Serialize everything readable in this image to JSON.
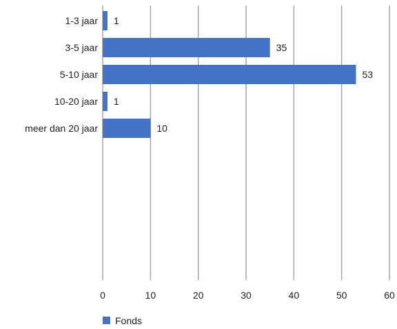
{
  "chart_data": {
    "type": "bar",
    "orientation": "horizontal",
    "categories": [
      "1-3 jaar",
      "3-5 jaar",
      "5-10 jaar",
      "10-20 jaar",
      "meer dan 20 jaar"
    ],
    "series": [
      {
        "name": "Fonds",
        "values": [
          1,
          35,
          53,
          1,
          10
        ],
        "color": "#4472c4"
      }
    ],
    "xlim": [
      0,
      60
    ],
    "xticks": [
      0,
      10,
      20,
      30,
      40,
      50,
      60
    ],
    "xtick_labels": [
      "0",
      "10",
      "20",
      "30",
      "40",
      "50",
      "60"
    ],
    "data_labels": [
      "1",
      "35",
      "53",
      "1",
      "10"
    ],
    "grid": true,
    "legend": "bottom-left",
    "title": "",
    "xlabel": "",
    "ylabel": ""
  }
}
